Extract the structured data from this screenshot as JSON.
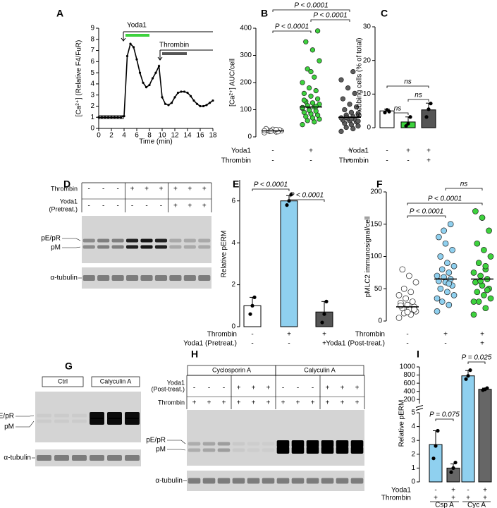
{
  "chart_data": [
    {
      "type": "line",
      "panel": "A",
      "xlabel": "Time (min)",
      "ylabel": "[Ca²⁺] (Relative F4/FuR)",
      "annotations": [
        "Yoda1",
        "Thrombin"
      ],
      "x": [
        0,
        0.5,
        1,
        1.5,
        2,
        2.5,
        3,
        3.5,
        4,
        4.5,
        5,
        5.5,
        6,
        6.5,
        7,
        7.5,
        8,
        8.5,
        9,
        9.5,
        10,
        10.5,
        11,
        11.5,
        12,
        12.5,
        13,
        13.5,
        14,
        14.5,
        15,
        15.5,
        16,
        16.5,
        17,
        17.5,
        18
      ],
      "values": [
        1,
        1,
        1,
        1,
        1,
        1,
        1,
        1,
        1.1,
        6.5,
        7.6,
        7.3,
        6.2,
        5.0,
        4.1,
        3.7,
        3.9,
        4.5,
        5.0,
        5.6,
        2.8,
        2.2,
        2.1,
        2.3,
        2.8,
        3.2,
        3.3,
        3.3,
        3.2,
        2.9,
        2.5,
        2.2,
        2.0,
        2.0,
        2.1,
        2.3,
        2.5
      ],
      "color": "#000000",
      "xlim": [
        0,
        18
      ],
      "xticks": [
        0,
        2,
        4,
        6,
        8,
        10,
        12,
        14,
        16,
        18
      ],
      "ylim": [
        0,
        9
      ],
      "yticks": [
        0,
        1,
        2,
        3,
        4,
        5,
        6,
        7,
        8,
        9
      ]
    },
    {
      "type": "strip",
      "panel": "B",
      "ylabel": "[Ca²⁺] AUC/cell",
      "annotations": [
        "P < 0.0001",
        "P < 0.0001",
        "P < 0.0001"
      ],
      "conditions": [
        {
          "name": "Yoda1",
          "values": [
            "-",
            "+",
            "+"
          ]
        },
        {
          "name": "Thrombin",
          "values": [
            "-",
            "-",
            "+"
          ]
        }
      ],
      "colors": [
        "#ffffff",
        "#3dd23d",
        "#5c5c5c"
      ],
      "points": [
        [
          15,
          18,
          20,
          22,
          24,
          25,
          26,
          28,
          30,
          19,
          21,
          23,
          27
        ],
        [
          45,
          55,
          60,
          65,
          70,
          75,
          80,
          85,
          90,
          95,
          100,
          105,
          110,
          115,
          120,
          125,
          130,
          140,
          150,
          160,
          170,
          180,
          200,
          220,
          250,
          280,
          320,
          350,
          390,
          240,
          135,
          112,
          98,
          108
        ],
        [
          20,
          30,
          35,
          40,
          45,
          50,
          55,
          60,
          62,
          65,
          68,
          70,
          75,
          80,
          85,
          90,
          100,
          110,
          120,
          140,
          160,
          180,
          210,
          240,
          72,
          58,
          66
        ]
      ],
      "means": [
        22,
        110,
        72
      ],
      "ylim": [
        0,
        400
      ],
      "yticks": [
        0,
        100,
        200,
        300,
        400
      ]
    },
    {
      "type": "bar",
      "panel": "C",
      "ylabel": "Blebbing cells (% of total)",
      "annotations": [
        "ns",
        "ns",
        "ns"
      ],
      "conditions": [
        {
          "name": "Yoda1",
          "values": [
            "-",
            "+",
            "+"
          ]
        },
        {
          "name": "Thrombin",
          "values": [
            "-",
            "-",
            "+"
          ]
        }
      ],
      "colors": [
        "#ffffff",
        "#3dd23d",
        "#555555"
      ],
      "values": [
        5,
        1.7,
        5.3
      ],
      "errors": [
        0.5,
        1.5,
        2.0
      ],
      "points": [
        [
          4.5,
          5.3,
          4.8
        ],
        [
          0.5,
          1.2,
          3.2
        ],
        [
          3.2,
          5.5,
          7.2
        ]
      ],
      "ylim": [
        0,
        30
      ],
      "yticks": [
        0,
        10,
        20,
        30
      ]
    },
    {
      "type": "bar",
      "panel": "E",
      "ylabel": "Relative pERM",
      "annotations": [
        "P < 0.0001",
        "P < 0.0001"
      ],
      "conditions": [
        {
          "name": "Thrombin",
          "values": [
            "-",
            "+",
            "+"
          ]
        },
        {
          "name": "Yoda1 (Pretreat.)",
          "values": [
            "-",
            "-",
            "+"
          ]
        }
      ],
      "colors": [
        "#ffffff",
        "#8fd0ef",
        "#555555"
      ],
      "values": [
        1,
        6,
        0.7
      ],
      "errors": [
        0.4,
        0.25,
        0.5
      ],
      "points": [
        [
          0.6,
          1.0,
          1.4
        ],
        [
          5.8,
          6.0,
          6.3
        ],
        [
          0.2,
          0.6,
          1.2
        ]
      ],
      "ylim": [
        0,
        7
      ],
      "yticks": [
        0,
        2,
        4,
        6
      ]
    },
    {
      "type": "strip",
      "panel": "F",
      "ylabel": "pMLC2 immunosignal/cell",
      "annotations": [
        "ns",
        "P < 0.0001",
        "P < 0.0001"
      ],
      "conditions": [
        {
          "name": "Thrombin",
          "values": [
            "-",
            "+",
            "+"
          ]
        },
        {
          "name": "Yoda1 (Post-treat.)",
          "values": [
            "-",
            "-",
            "+"
          ]
        }
      ],
      "colors": [
        "#ffffff",
        "#8fd0ef",
        "#3dd23d"
      ],
      "points": [
        [
          5,
          10,
          12,
          15,
          18,
          20,
          22,
          25,
          28,
          30,
          35,
          40,
          45,
          50,
          60,
          70,
          80,
          18,
          14,
          24
        ],
        [
          15,
          25,
          30,
          40,
          45,
          50,
          55,
          60,
          62,
          65,
          68,
          70,
          75,
          80,
          85,
          90,
          100,
          110,
          120,
          130,
          150,
          140,
          35,
          58
        ],
        [
          10,
          20,
          30,
          35,
          40,
          45,
          50,
          55,
          60,
          65,
          70,
          75,
          80,
          90,
          100,
          110,
          120,
          140,
          160,
          170,
          48,
          62,
          30,
          85
        ]
      ],
      "means": [
        22,
        65,
        65
      ],
      "ylim": [
        0,
        200
      ],
      "yticks": [
        0,
        50,
        100,
        150,
        200
      ]
    },
    {
      "type": "bar",
      "panel": "I",
      "ylabel": "Relative pERM",
      "annotations": [
        "P = 0.025",
        "P = 0.075"
      ],
      "conditions": [
        {
          "name": "Yoda1",
          "values": [
            "-",
            "+",
            "-",
            "+"
          ]
        },
        {
          "name": "Thrombin",
          "values": [
            "+",
            "+",
            "+",
            "+"
          ]
        }
      ],
      "group_labels": [
        "Csp A",
        "Cyc A"
      ],
      "colors": [
        "#8fd0ef",
        "#666666",
        "#8fd0ef",
        "#666666"
      ],
      "axis": [
        "y",
        "y",
        "y2",
        "y2"
      ],
      "values": [
        2.7,
        1.0,
        780,
        450
      ],
      "errors": [
        1.0,
        0.3,
        130,
        30
      ],
      "points": [
        [
          1.7,
          2.6,
          3.7
        ],
        [
          0.7,
          1.0,
          1.4
        ],
        [
          700,
          780,
          920
        ],
        [
          430,
          450,
          480
        ]
      ],
      "ylim": [
        0,
        5
      ],
      "yticks": [
        0,
        1,
        2,
        3,
        4,
        5
      ],
      "y2lim": [
        100,
        1000
      ],
      "y2ticks": [
        200,
        400,
        600,
        800,
        1000
      ]
    }
  ],
  "blots": [
    {
      "panel": "D",
      "rows": [
        {
          "label": [
            "Thrombin"
          ],
          "values": [
            "-",
            "-",
            "-",
            "+",
            "+",
            "+",
            "+",
            "+",
            "+"
          ]
        },
        {
          "label": [
            "Yoda1",
            "(Pretreat.)"
          ],
          "values": [
            "-",
            "-",
            "-",
            "-",
            "-",
            "-",
            "+",
            "+",
            "+"
          ]
        }
      ],
      "bands": [
        "pE/pR",
        "pM"
      ],
      "loading": "α-tubulin"
    },
    {
      "panel": "G",
      "headers": [
        "Ctrl",
        "Calyculin A"
      ],
      "bands": [
        "pE/pR",
        "pM"
      ],
      "loading": "α-tubulin"
    },
    {
      "panel": "H",
      "headers": [
        "Cyclosporin A",
        "Calyculin A"
      ],
      "rows": [
        {
          "label": [
            "Yoda1",
            "(Post-treat.)"
          ],
          "values": [
            "-",
            "-",
            "-",
            "+",
            "+",
            "+",
            "-",
            "-",
            "-",
            "+",
            "+",
            "+"
          ]
        },
        {
          "label": [
            "Thrombin"
          ],
          "values": [
            "+",
            "+",
            "+",
            "+",
            "+",
            "+",
            "+",
            "+",
            "+",
            "+",
            "+",
            "+"
          ]
        }
      ],
      "bands": [
        "pE/pR",
        "pM"
      ],
      "loading": "α-tubulin"
    }
  ]
}
